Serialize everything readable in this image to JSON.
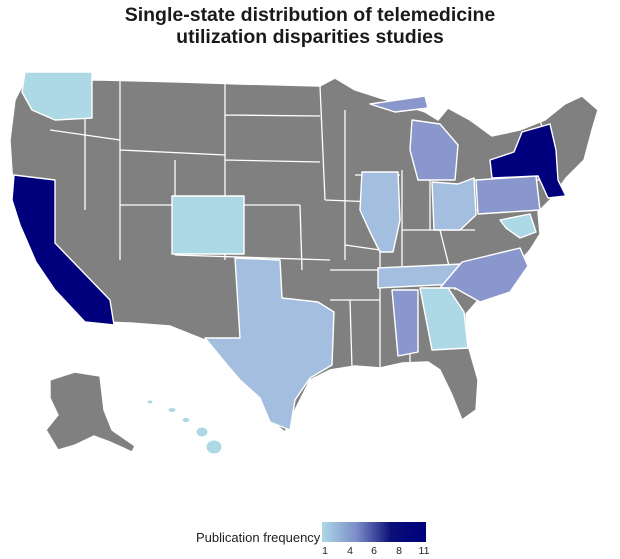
{
  "title": [
    "Single-state distribution of telemedicine",
    "utilization disparities studies"
  ],
  "colors": {
    "no_data": "#808080",
    "low": "#add8e6",
    "mid_low": "#a3bedf",
    "mid": "#8a97cc",
    "high": "#00007c",
    "border": "#ffffff"
  },
  "states": [
    {
      "id": "washington",
      "name": "Washington",
      "color_class": "low"
    },
    {
      "id": "california",
      "name": "California",
      "color_class": "high"
    },
    {
      "id": "colorado",
      "name": "Colorado",
      "color_class": "low"
    },
    {
      "id": "texas",
      "name": "Texas",
      "color_class": "mid_low"
    },
    {
      "id": "illinois",
      "name": "Illinois",
      "color_class": "mid_low"
    },
    {
      "id": "michigan",
      "name": "Michigan",
      "color_class": "mid"
    },
    {
      "id": "ohio",
      "name": "Ohio",
      "color_class": "mid_low"
    },
    {
      "id": "pennsylvania",
      "name": "Pennsylvania",
      "color_class": "mid"
    },
    {
      "id": "new-york",
      "name": "New York",
      "color_class": "high"
    },
    {
      "id": "tennessee",
      "name": "Tennessee",
      "color_class": "mid_low"
    },
    {
      "id": "north-carolina",
      "name": "North Carolina",
      "color_class": "mid"
    },
    {
      "id": "alabama",
      "name": "Alabama",
      "color_class": "mid"
    },
    {
      "id": "georgia",
      "name": "Georgia",
      "color_class": "low"
    },
    {
      "id": "maryland",
      "name": "Maryland",
      "color_class": "low"
    },
    {
      "id": "hawaii",
      "name": "Hawaii",
      "color_class": "low"
    }
  ],
  "legend": {
    "title": "Publication frequency",
    "ticks": [
      "1",
      "4",
      "6",
      "8",
      "11"
    ],
    "range": [
      1,
      11
    ]
  }
}
